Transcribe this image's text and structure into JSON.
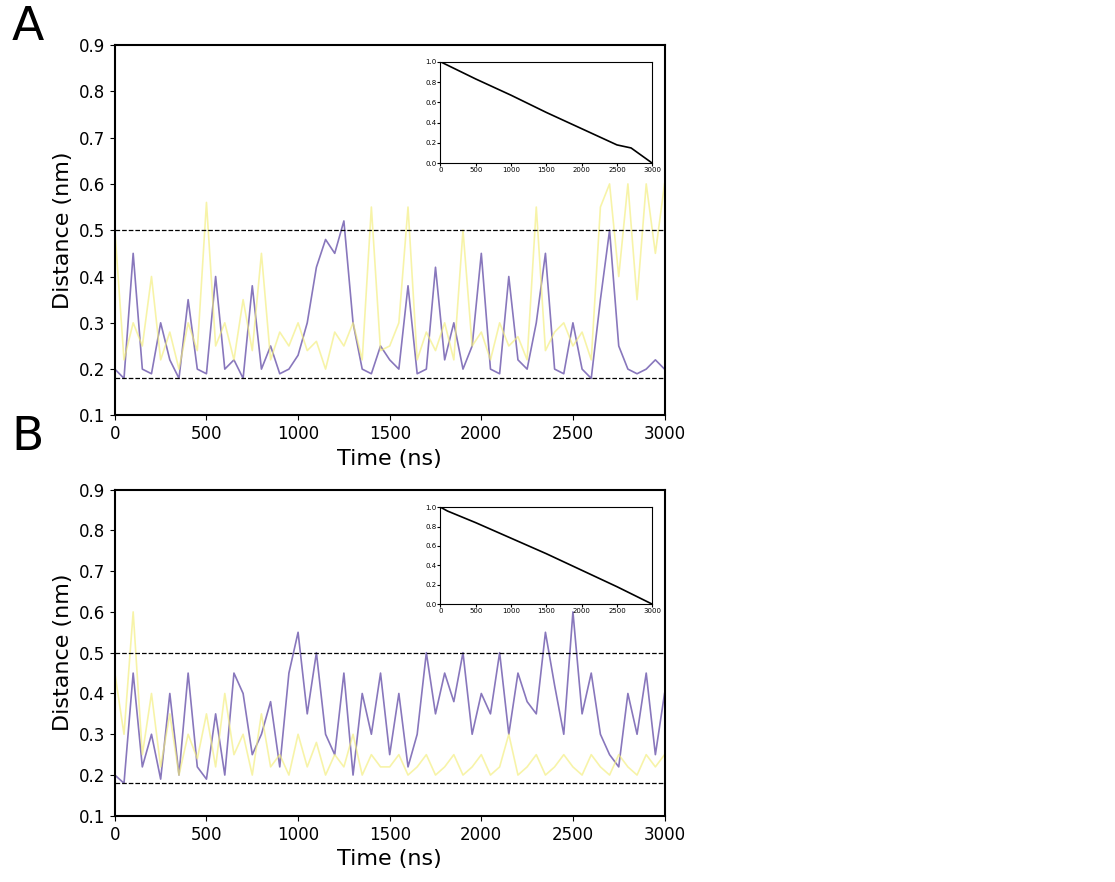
{
  "chart_data": [
    {
      "label": "A",
      "type": "line",
      "xlabel": "Time (ns)",
      "ylabel": "Distance (nm)",
      "xlim": [
        0,
        3000
      ],
      "ylim": [
        0.1,
        0.9
      ],
      "xticks": [
        0,
        500,
        1000,
        1500,
        2000,
        2500,
        3000
      ],
      "yticks": [
        0.1,
        0.2,
        0.3,
        0.4,
        0.5,
        0.6,
        0.7,
        0.8,
        0.9
      ],
      "hlines": [
        0.18,
        0.5
      ],
      "x": [
        0,
        50,
        100,
        150,
        200,
        250,
        300,
        350,
        400,
        450,
        500,
        550,
        600,
        650,
        700,
        750,
        800,
        850,
        900,
        950,
        1000,
        1050,
        1100,
        1150,
        1200,
        1250,
        1300,
        1350,
        1400,
        1450,
        1500,
        1550,
        1600,
        1650,
        1700,
        1750,
        1800,
        1850,
        1900,
        1950,
        2000,
        2050,
        2100,
        2150,
        2200,
        2250,
        2300,
        2350,
        2400,
        2450,
        2500,
        2550,
        2600,
        2650,
        2700,
        2750,
        2800,
        2850,
        2900,
        2950,
        3000
      ],
      "series": [
        {
          "color": "#7b68b5",
          "values": [
            0.2,
            0.18,
            0.45,
            0.2,
            0.19,
            0.3,
            0.22,
            0.18,
            0.35,
            0.2,
            0.19,
            0.4,
            0.2,
            0.22,
            0.18,
            0.38,
            0.2,
            0.25,
            0.19,
            0.2,
            0.23,
            0.3,
            0.42,
            0.48,
            0.45,
            0.52,
            0.3,
            0.2,
            0.19,
            0.25,
            0.22,
            0.2,
            0.38,
            0.19,
            0.2,
            0.42,
            0.22,
            0.3,
            0.2,
            0.25,
            0.45,
            0.2,
            0.19,
            0.4,
            0.22,
            0.2,
            0.3,
            0.45,
            0.2,
            0.19,
            0.3,
            0.2,
            0.18,
            0.35,
            0.5,
            0.25,
            0.2,
            0.19,
            0.2,
            0.22,
            0.2
          ]
        },
        {
          "color": "#f3ee7a",
          "values": [
            0.5,
            0.22,
            0.3,
            0.25,
            0.4,
            0.22,
            0.28,
            0.2,
            0.3,
            0.24,
            0.56,
            0.25,
            0.3,
            0.22,
            0.35,
            0.24,
            0.45,
            0.22,
            0.28,
            0.25,
            0.3,
            0.24,
            0.26,
            0.2,
            0.28,
            0.25,
            0.3,
            0.22,
            0.55,
            0.24,
            0.25,
            0.3,
            0.55,
            0.22,
            0.28,
            0.24,
            0.3,
            0.22,
            0.5,
            0.25,
            0.28,
            0.22,
            0.3,
            0.25,
            0.27,
            0.22,
            0.55,
            0.24,
            0.28,
            0.3,
            0.25,
            0.28,
            0.22,
            0.55,
            0.6,
            0.4,
            0.6,
            0.35,
            0.6,
            0.45,
            0.6
          ]
        }
      ],
      "inset": {
        "type": "line",
        "x": [
          0,
          500,
          1000,
          1500,
          2000,
          2500,
          2700,
          3000
        ],
        "values": [
          1.0,
          0.83,
          0.67,
          0.5,
          0.34,
          0.18,
          0.15,
          0.0
        ],
        "color": "#000000",
        "xlim": [
          0,
          3000
        ],
        "ylim": [
          0.0,
          1.0
        ],
        "xticks": [
          0,
          500,
          1000,
          1500,
          2000,
          2500,
          3000
        ],
        "yticks": [
          0.0,
          0.2,
          0.4,
          0.6,
          0.8,
          1.0
        ]
      }
    },
    {
      "label": "B",
      "type": "line",
      "xlabel": "Time (ns)",
      "ylabel": "Distance (nm)",
      "xlim": [
        0,
        3000
      ],
      "ylim": [
        0.1,
        0.9
      ],
      "xticks": [
        0,
        500,
        1000,
        1500,
        2000,
        2500,
        3000
      ],
      "yticks": [
        0.1,
        0.2,
        0.3,
        0.4,
        0.5,
        0.6,
        0.7,
        0.8,
        0.9
      ],
      "hlines": [
        0.18,
        0.5
      ],
      "x": [
        0,
        50,
        100,
        150,
        200,
        250,
        300,
        350,
        400,
        450,
        500,
        550,
        600,
        650,
        700,
        750,
        800,
        850,
        900,
        950,
        1000,
        1050,
        1100,
        1150,
        1200,
        1250,
        1300,
        1350,
        1400,
        1450,
        1500,
        1550,
        1600,
        1650,
        1700,
        1750,
        1800,
        1850,
        1900,
        1950,
        2000,
        2050,
        2100,
        2150,
        2200,
        2250,
        2300,
        2350,
        2400,
        2450,
        2500,
        2550,
        2600,
        2650,
        2700,
        2750,
        2800,
        2850,
        2900,
        2950,
        3000
      ],
      "series": [
        {
          "color": "#7b68b5",
          "values": [
            0.2,
            0.18,
            0.45,
            0.22,
            0.3,
            0.19,
            0.4,
            0.2,
            0.45,
            0.22,
            0.19,
            0.35,
            0.2,
            0.45,
            0.4,
            0.25,
            0.3,
            0.38,
            0.22,
            0.45,
            0.55,
            0.35,
            0.5,
            0.3,
            0.25,
            0.45,
            0.2,
            0.4,
            0.3,
            0.45,
            0.25,
            0.4,
            0.22,
            0.3,
            0.5,
            0.35,
            0.45,
            0.38,
            0.5,
            0.3,
            0.4,
            0.35,
            0.5,
            0.3,
            0.45,
            0.38,
            0.35,
            0.55,
            0.42,
            0.3,
            0.6,
            0.35,
            0.45,
            0.3,
            0.25,
            0.22,
            0.4,
            0.3,
            0.45,
            0.25,
            0.4
          ]
        },
        {
          "color": "#f3ee7a",
          "values": [
            0.45,
            0.3,
            0.6,
            0.25,
            0.4,
            0.22,
            0.35,
            0.2,
            0.3,
            0.24,
            0.35,
            0.22,
            0.4,
            0.25,
            0.3,
            0.2,
            0.35,
            0.22,
            0.25,
            0.2,
            0.3,
            0.22,
            0.28,
            0.2,
            0.25,
            0.22,
            0.3,
            0.2,
            0.25,
            0.22,
            0.22,
            0.25,
            0.2,
            0.22,
            0.25,
            0.2,
            0.22,
            0.25,
            0.2,
            0.22,
            0.25,
            0.2,
            0.22,
            0.3,
            0.2,
            0.22,
            0.25,
            0.2,
            0.22,
            0.25,
            0.22,
            0.2,
            0.25,
            0.22,
            0.2,
            0.25,
            0.22,
            0.2,
            0.25,
            0.22,
            0.25
          ]
        }
      ],
      "inset": {
        "type": "line",
        "x": [
          0,
          100,
          500,
          1000,
          1500,
          2000,
          2500,
          3000
        ],
        "values": [
          1.0,
          0.96,
          0.84,
          0.68,
          0.52,
          0.35,
          0.18,
          0.0
        ],
        "color": "#000000",
        "xlim": [
          0,
          3000
        ],
        "ylim": [
          0.0,
          1.0
        ],
        "xticks": [
          0,
          500,
          1000,
          1500,
          2000,
          2500,
          3000
        ],
        "yticks": [
          0.0,
          0.2,
          0.4,
          0.6,
          0.8,
          1.0
        ]
      }
    }
  ]
}
